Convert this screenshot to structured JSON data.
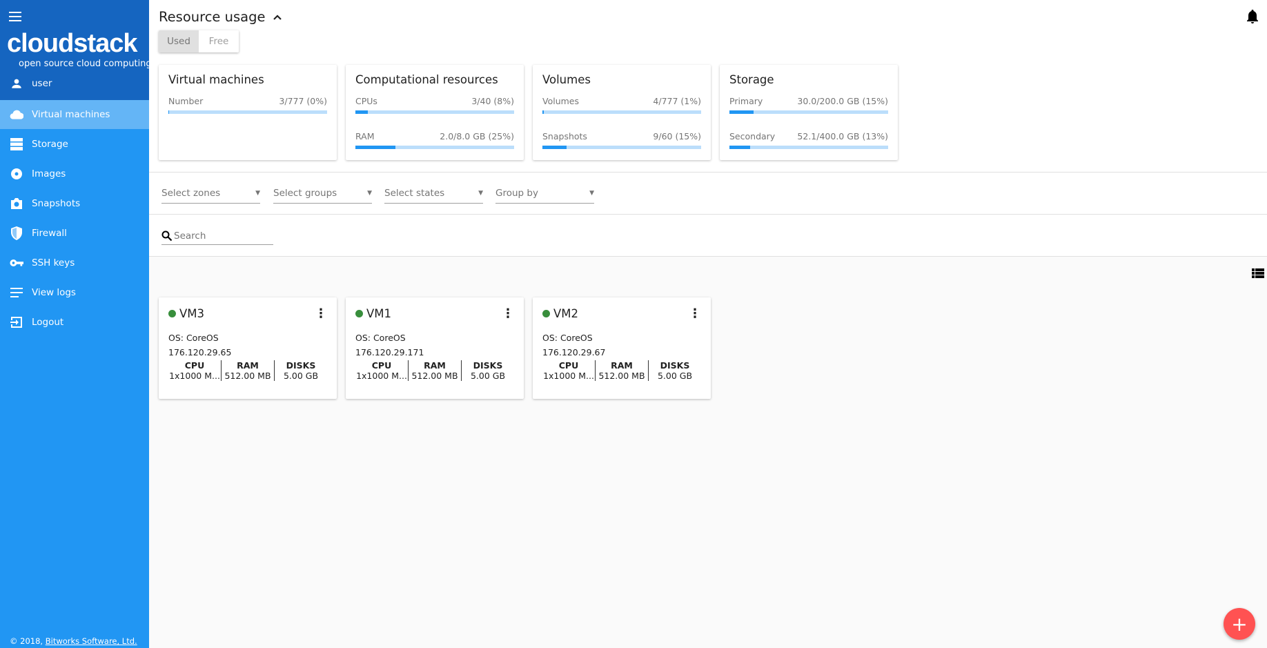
{
  "sidebar": {
    "logo": "cloudstack",
    "logo_sub": "open source cloud computing",
    "user": "user",
    "items": [
      {
        "label": "Virtual machines",
        "icon": "cloud-icon",
        "active": true
      },
      {
        "label": "Storage",
        "icon": "storage-icon"
      },
      {
        "label": "Images",
        "icon": "disc-icon"
      },
      {
        "label": "Snapshots",
        "icon": "camera-icon"
      },
      {
        "label": "Firewall",
        "icon": "shield-icon"
      },
      {
        "label": "SSH keys",
        "icon": "key-icon"
      },
      {
        "label": "View logs",
        "icon": "logs-icon"
      },
      {
        "label": "Logout",
        "icon": "logout-icon"
      }
    ],
    "footer_prefix": "© 2018,",
    "footer_link": "Bitworks Software, Ltd."
  },
  "header": {
    "title": "Resource usage",
    "toggle": {
      "used": "Used",
      "free": "Free",
      "selected": "Used"
    }
  },
  "resources": [
    {
      "title": "Virtual machines",
      "rows": [
        {
          "label": "Number",
          "value": "3/777 (0%)",
          "percent": 0.4
        }
      ]
    },
    {
      "title": "Computational resources",
      "rows": [
        {
          "label": "CPUs",
          "value": "3/40 (8%)",
          "percent": 8
        },
        {
          "label": "RAM",
          "value": "2.0/8.0 GB (25%)",
          "percent": 25
        }
      ]
    },
    {
      "title": "Volumes",
      "rows": [
        {
          "label": "Volumes",
          "value": "4/777 (1%)",
          "percent": 1
        },
        {
          "label": "Snapshots",
          "value": "9/60 (15%)",
          "percent": 15
        }
      ]
    },
    {
      "title": "Storage",
      "rows": [
        {
          "label": "Primary",
          "value": "30.0/200.0 GB (15%)",
          "percent": 15
        },
        {
          "label": "Secondary",
          "value": "52.1/400.0 GB (13%)",
          "percent": 13
        }
      ]
    }
  ],
  "filters": [
    "Select zones",
    "Select groups",
    "Select states",
    "Group by"
  ],
  "search": {
    "placeholder": "Search"
  },
  "spec_headers": {
    "cpu": "CPU",
    "ram": "RAM",
    "disks": "DISKS"
  },
  "vms": [
    {
      "name": "VM3",
      "os": "OS: CoreOS",
      "ip": "176.120.29.65",
      "cpu": "1x1000 M...",
      "ram": "512.00 MB",
      "disks": "5.00 GB",
      "status_color": "#388e3c"
    },
    {
      "name": "VM1",
      "os": "OS: CoreOS",
      "ip": "176.120.29.171",
      "cpu": "1x1000 M...",
      "ram": "512.00 MB",
      "disks": "5.00 GB",
      "status_color": "#388e3c"
    },
    {
      "name": "VM2",
      "os": "OS: CoreOS",
      "ip": "176.120.29.67",
      "cpu": "1x1000 M...",
      "ram": "512.00 MB",
      "disks": "5.00 GB",
      "status_color": "#388e3c"
    }
  ],
  "fab": "+",
  "colors": {
    "sidebar": "#2196f3",
    "sidebar_top": "#1565c0",
    "active": "#64b5f6",
    "fab": "#ff5252"
  }
}
